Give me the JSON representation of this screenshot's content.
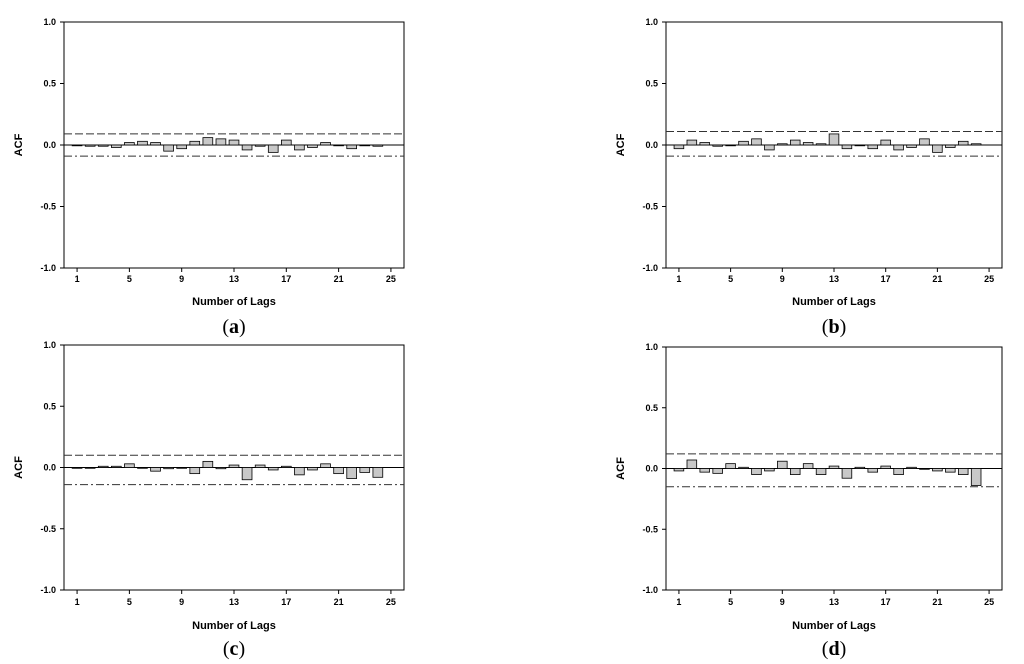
{
  "chart_data": [
    {
      "type": "bar",
      "panel_label": "a",
      "xlabel": "Number of Lags",
      "ylabel": "ACF",
      "xlim": [
        0,
        26
      ],
      "ylim": [
        -1.0,
        1.0
      ],
      "yticks": [
        "1.0",
        "0.5",
        "0.0",
        "-0.5",
        "-1.0"
      ],
      "xticks": [
        "1",
        "5",
        "9",
        "13",
        "17",
        "21",
        "25"
      ],
      "lags": [
        1,
        2,
        3,
        4,
        5,
        6,
        7,
        8,
        9,
        10,
        11,
        12,
        13,
        14,
        15,
        16,
        17,
        18,
        19,
        20,
        21,
        22,
        23,
        24
      ],
      "values": [
        0.0,
        -0.01,
        -0.01,
        -0.02,
        0.02,
        0.03,
        0.02,
        -0.05,
        -0.03,
        0.03,
        0.06,
        0.05,
        0.04,
        -0.04,
        -0.01,
        -0.06,
        0.04,
        -0.04,
        -0.02,
        0.02,
        0.0,
        -0.03,
        0.0,
        -0.01
      ],
      "confidence_upper": 0.09,
      "confidence_lower": -0.09
    },
    {
      "type": "bar",
      "panel_label": "b",
      "xlabel": "Number of Lags",
      "ylabel": "ACF",
      "xlim": [
        0,
        26
      ],
      "ylim": [
        -1.0,
        1.0
      ],
      "yticks": [
        "1.0",
        "0.5",
        "0.0",
        "-0.5",
        "-1.0"
      ],
      "xticks": [
        "1",
        "5",
        "9",
        "13",
        "17",
        "21",
        "25"
      ],
      "lags": [
        1,
        2,
        3,
        4,
        5,
        6,
        7,
        8,
        9,
        10,
        11,
        12,
        13,
        14,
        15,
        16,
        17,
        18,
        19,
        20,
        21,
        22,
        23,
        24
      ],
      "values": [
        -0.03,
        0.04,
        0.02,
        -0.01,
        0.0,
        0.03,
        0.05,
        -0.04,
        0.01,
        0.04,
        0.02,
        0.01,
        0.09,
        -0.03,
        0.0,
        -0.03,
        0.04,
        -0.04,
        -0.02,
        0.05,
        -0.06,
        -0.02,
        0.03,
        0.01
      ],
      "confidence_upper": 0.11,
      "confidence_lower": -0.09
    },
    {
      "type": "bar",
      "panel_label": "c",
      "xlabel": "Number of Lags",
      "ylabel": "ACF",
      "xlim": [
        0,
        26
      ],
      "ylim": [
        -1.0,
        1.0
      ],
      "yticks": [
        "1.0",
        "0.5",
        "0.0",
        "-0.5",
        "-1.0"
      ],
      "xticks": [
        "1",
        "5",
        "9",
        "13",
        "17",
        "21",
        "25"
      ],
      "lags": [
        1,
        2,
        3,
        4,
        5,
        6,
        7,
        8,
        9,
        10,
        11,
        12,
        13,
        14,
        15,
        16,
        17,
        18,
        19,
        20,
        21,
        22,
        23,
        24
      ],
      "values": [
        0.0,
        0.0,
        0.01,
        0.01,
        0.03,
        0.0,
        -0.03,
        -0.01,
        0.0,
        -0.05,
        0.05,
        -0.01,
        0.02,
        -0.1,
        0.02,
        -0.02,
        0.01,
        -0.06,
        -0.02,
        0.03,
        -0.05,
        -0.09,
        -0.04,
        -0.08
      ],
      "confidence_upper": 0.1,
      "confidence_lower": -0.14
    },
    {
      "type": "bar",
      "panel_label": "d",
      "xlabel": "Number of Lags",
      "ylabel": "ACF",
      "xlim": [
        0,
        26
      ],
      "ylim": [
        -1.0,
        1.0
      ],
      "yticks": [
        "1.0",
        "0.5",
        "0.0",
        "-0.5",
        "-1.0"
      ],
      "xticks": [
        "1",
        "5",
        "9",
        "13",
        "17",
        "21",
        "25"
      ],
      "lags": [
        1,
        2,
        3,
        4,
        5,
        6,
        7,
        8,
        9,
        10,
        11,
        12,
        13,
        14,
        15,
        16,
        17,
        18,
        19,
        20,
        21,
        22,
        23,
        24
      ],
      "values": [
        -0.02,
        0.07,
        -0.03,
        -0.04,
        0.04,
        0.01,
        -0.05,
        -0.02,
        0.06,
        -0.05,
        0.04,
        -0.05,
        0.02,
        -0.08,
        0.01,
        -0.03,
        0.02,
        -0.05,
        0.01,
        0.0,
        -0.02,
        -0.03,
        -0.05,
        -0.14
      ],
      "confidence_upper": 0.12,
      "confidence_lower": -0.15
    }
  ],
  "colors": {
    "bar_fill": "#c8c8c8",
    "bar_stroke": "#000000",
    "axis": "#000000",
    "confidence_line": "#333333",
    "tick_text": "#000000",
    "accent_tick": "#1f4e79"
  }
}
